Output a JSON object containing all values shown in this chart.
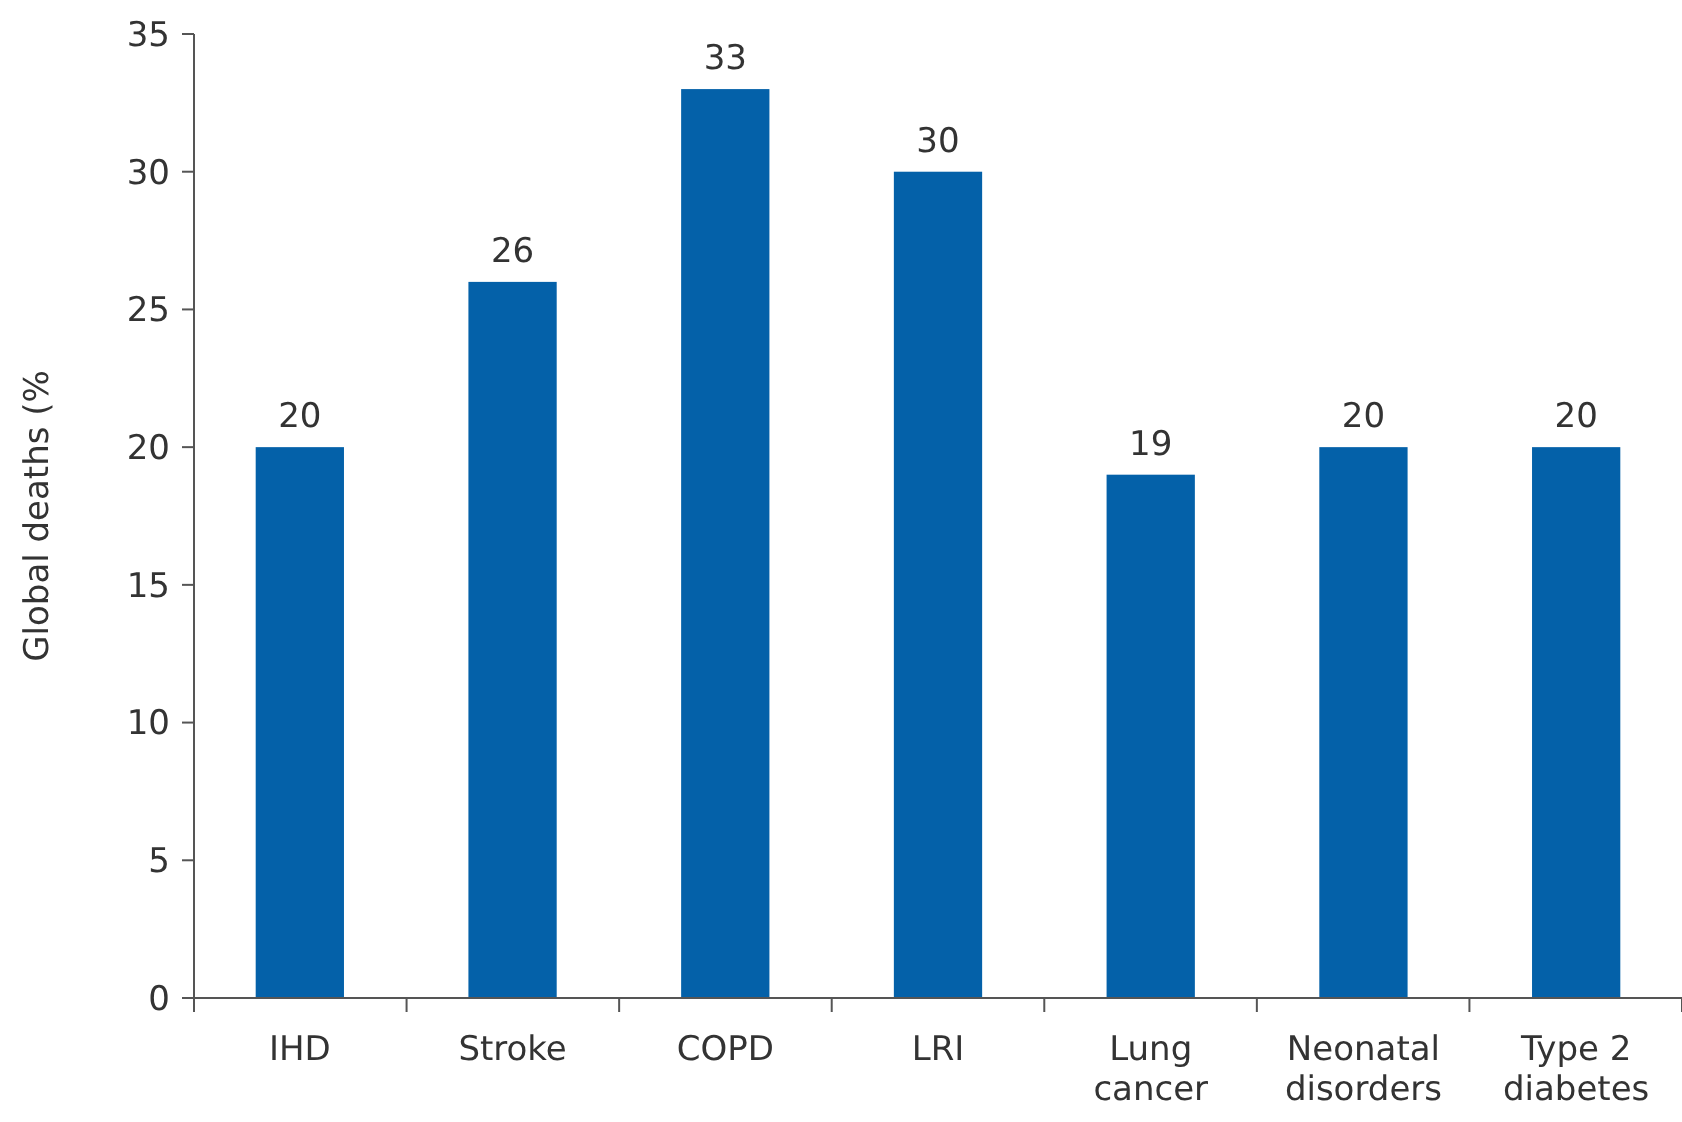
{
  "chart_data": {
    "type": "bar",
    "ylabel": "Global deaths (%",
    "categories": [
      "IHD",
      "Stroke",
      "COPD",
      "LRI",
      "Lung cancer",
      "Neonatal disorders",
      "Type 2 diabetes"
    ],
    "values": [
      20,
      26,
      33,
      30,
      19,
      20,
      20
    ],
    "color": "#0461a9",
    "ylim": [
      0,
      35
    ],
    "yticks": [
      0,
      5,
      10,
      15,
      20,
      25,
      30,
      35
    ],
    "data_labels": true,
    "grid": false
  }
}
